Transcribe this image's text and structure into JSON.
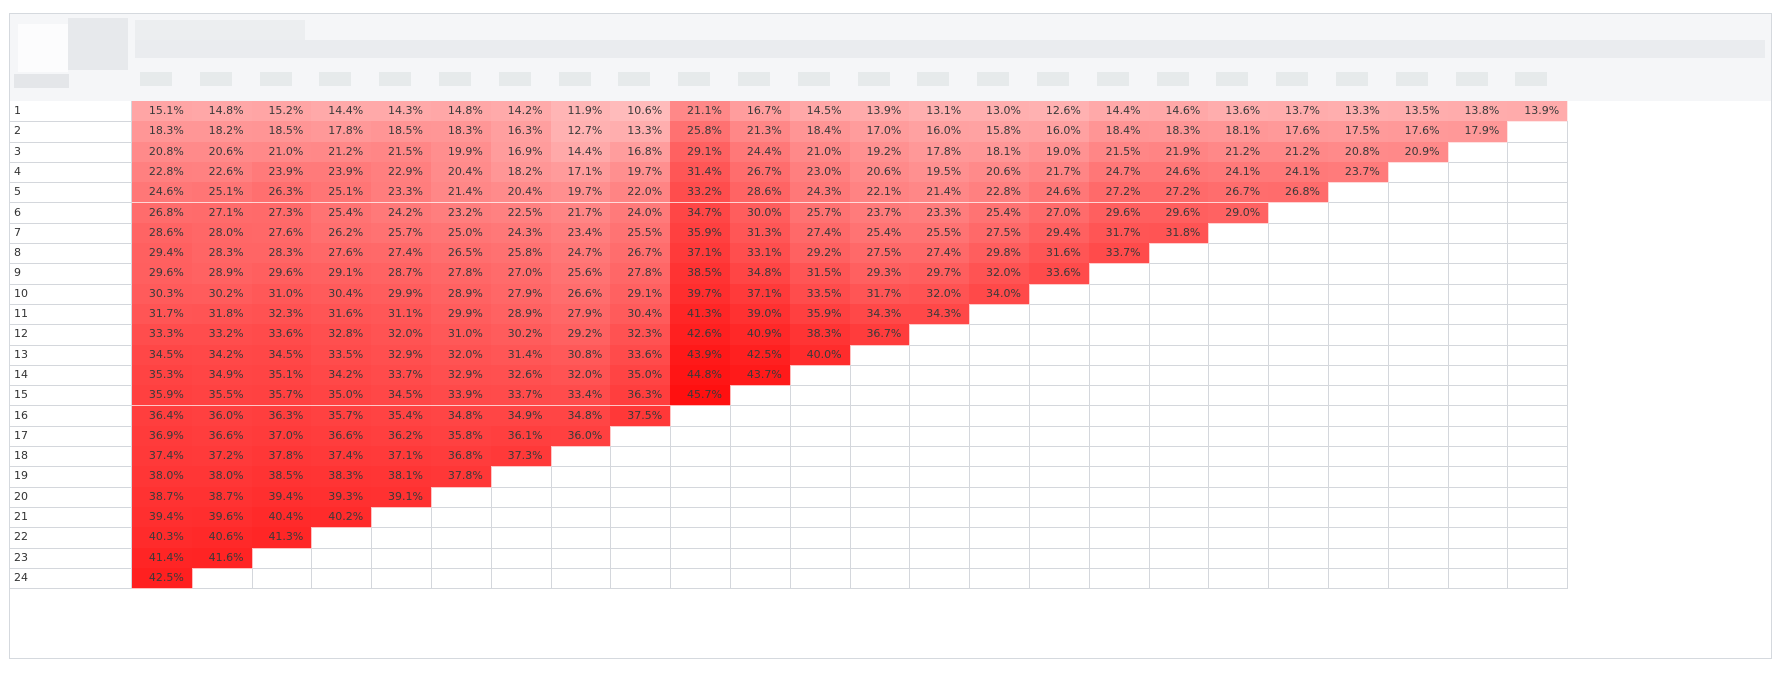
{
  "table": {
    "header": {
      "label": "",
      "column_headers": []
    },
    "rows": [
      {
        "label": "1",
        "values": [
          "15.1%",
          "14.8%",
          "15.2%",
          "14.4%",
          "14.3%",
          "14.8%",
          "14.2%",
          "11.9%",
          "10.6%",
          "21.1%",
          "16.7%",
          "14.5%",
          "13.9%",
          "13.1%",
          "13.0%",
          "12.6%",
          "14.4%",
          "14.6%",
          "13.6%",
          "13.7%",
          "13.3%",
          "13.5%",
          "13.8%",
          "13.9%"
        ]
      },
      {
        "label": "2",
        "values": [
          "18.3%",
          "18.2%",
          "18.5%",
          "17.8%",
          "18.5%",
          "18.3%",
          "16.3%",
          "12.7%",
          "13.3%",
          "25.8%",
          "21.3%",
          "18.4%",
          "17.0%",
          "16.0%",
          "15.8%",
          "16.0%",
          "18.4%",
          "18.3%",
          "18.1%",
          "17.6%",
          "17.5%",
          "17.6%",
          "17.9%"
        ]
      },
      {
        "label": "3",
        "values": [
          "20.8%",
          "20.6%",
          "21.0%",
          "21.2%",
          "21.5%",
          "19.9%",
          "16.9%",
          "14.4%",
          "16.8%",
          "29.1%",
          "24.4%",
          "21.0%",
          "19.2%",
          "17.8%",
          "18.1%",
          "19.0%",
          "21.5%",
          "21.9%",
          "21.2%",
          "21.2%",
          "20.8%",
          "20.9%"
        ]
      },
      {
        "label": "4",
        "values": [
          "22.8%",
          "22.6%",
          "23.9%",
          "23.9%",
          "22.9%",
          "20.4%",
          "18.2%",
          "17.1%",
          "19.7%",
          "31.4%",
          "26.7%",
          "23.0%",
          "20.6%",
          "19.5%",
          "20.6%",
          "21.7%",
          "24.7%",
          "24.6%",
          "24.1%",
          "24.1%",
          "23.7%"
        ]
      },
      {
        "label": "5",
        "values": [
          "24.6%",
          "25.1%",
          "26.3%",
          "25.1%",
          "23.3%",
          "21.4%",
          "20.4%",
          "19.7%",
          "22.0%",
          "33.2%",
          "28.6%",
          "24.3%",
          "22.1%",
          "21.4%",
          "22.8%",
          "24.6%",
          "27.2%",
          "27.2%",
          "26.7%",
          "26.8%"
        ]
      },
      {
        "label": "6",
        "values": [
          "26.8%",
          "27.1%",
          "27.3%",
          "25.4%",
          "24.2%",
          "23.2%",
          "22.5%",
          "21.7%",
          "24.0%",
          "34.7%",
          "30.0%",
          "25.7%",
          "23.7%",
          "23.3%",
          "25.4%",
          "27.0%",
          "29.6%",
          "29.6%",
          "29.0%"
        ]
      },
      {
        "label": "7",
        "values": [
          "28.6%",
          "28.0%",
          "27.6%",
          "26.2%",
          "25.7%",
          "25.0%",
          "24.3%",
          "23.4%",
          "25.5%",
          "35.9%",
          "31.3%",
          "27.4%",
          "25.4%",
          "25.5%",
          "27.5%",
          "29.4%",
          "31.7%",
          "31.8%"
        ]
      },
      {
        "label": "8",
        "values": [
          "29.4%",
          "28.3%",
          "28.3%",
          "27.6%",
          "27.4%",
          "26.5%",
          "25.8%",
          "24.7%",
          "26.7%",
          "37.1%",
          "33.1%",
          "29.2%",
          "27.5%",
          "27.4%",
          "29.8%",
          "31.6%",
          "33.7%"
        ]
      },
      {
        "label": "9",
        "values": [
          "29.6%",
          "28.9%",
          "29.6%",
          "29.1%",
          "28.7%",
          "27.8%",
          "27.0%",
          "25.6%",
          "27.8%",
          "38.5%",
          "34.8%",
          "31.5%",
          "29.3%",
          "29.7%",
          "32.0%",
          "33.6%"
        ]
      },
      {
        "label": "10",
        "values": [
          "30.3%",
          "30.2%",
          "31.0%",
          "30.4%",
          "29.9%",
          "28.9%",
          "27.9%",
          "26.6%",
          "29.1%",
          "39.7%",
          "37.1%",
          "33.5%",
          "31.7%",
          "32.0%",
          "34.0%"
        ]
      },
      {
        "label": "11",
        "values": [
          "31.7%",
          "31.8%",
          "32.3%",
          "31.6%",
          "31.1%",
          "29.9%",
          "28.9%",
          "27.9%",
          "30.4%",
          "41.3%",
          "39.0%",
          "35.9%",
          "34.3%",
          "34.3%"
        ]
      },
      {
        "label": "12",
        "values": [
          "33.3%",
          "33.2%",
          "33.6%",
          "32.8%",
          "32.0%",
          "31.0%",
          "30.2%",
          "29.2%",
          "32.3%",
          "42.6%",
          "40.9%",
          "38.3%",
          "36.7%"
        ]
      },
      {
        "label": "13",
        "values": [
          "34.5%",
          "34.2%",
          "34.5%",
          "33.5%",
          "32.9%",
          "32.0%",
          "31.4%",
          "30.8%",
          "33.6%",
          "43.9%",
          "42.5%",
          "40.0%"
        ]
      },
      {
        "label": "14",
        "values": [
          "35.3%",
          "34.9%",
          "35.1%",
          "34.2%",
          "33.7%",
          "32.9%",
          "32.6%",
          "32.0%",
          "35.0%",
          "44.8%",
          "43.7%"
        ]
      },
      {
        "label": "15",
        "values": [
          "35.9%",
          "35.5%",
          "35.7%",
          "35.0%",
          "34.5%",
          "33.9%",
          "33.7%",
          "33.4%",
          "36.3%",
          "45.7%"
        ]
      },
      {
        "label": "16",
        "values": [
          "36.4%",
          "36.0%",
          "36.3%",
          "35.7%",
          "35.4%",
          "34.8%",
          "34.9%",
          "34.8%",
          "37.5%"
        ]
      },
      {
        "label": "17",
        "values": [
          "36.9%",
          "36.6%",
          "37.0%",
          "36.6%",
          "36.2%",
          "35.8%",
          "36.1%",
          "36.0%"
        ]
      },
      {
        "label": "18",
        "values": [
          "37.4%",
          "37.2%",
          "37.8%",
          "37.4%",
          "37.1%",
          "36.8%",
          "37.3%"
        ]
      },
      {
        "label": "19",
        "values": [
          "38.0%",
          "38.0%",
          "38.5%",
          "38.3%",
          "38.1%",
          "37.8%"
        ]
      },
      {
        "label": "20",
        "values": [
          "38.7%",
          "38.7%",
          "39.4%",
          "39.3%",
          "39.1%"
        ]
      },
      {
        "label": "21",
        "values": [
          "39.4%",
          "39.6%",
          "40.4%",
          "40.2%"
        ]
      },
      {
        "label": "22",
        "values": [
          "40.3%",
          "40.6%",
          "41.3%"
        ]
      },
      {
        "label": "23",
        "values": [
          "41.4%",
          "41.6%"
        ]
      },
      {
        "label": "24",
        "values": [
          "42.5%"
        ]
      }
    ]
  },
  "colors": {
    "heat_low": "#ffb6b6",
    "heat_high": "#ff0f0f",
    "text": "#3a3a3a",
    "grid": "#d4d7dc",
    "header_bg": "#f5f6f8"
  }
}
